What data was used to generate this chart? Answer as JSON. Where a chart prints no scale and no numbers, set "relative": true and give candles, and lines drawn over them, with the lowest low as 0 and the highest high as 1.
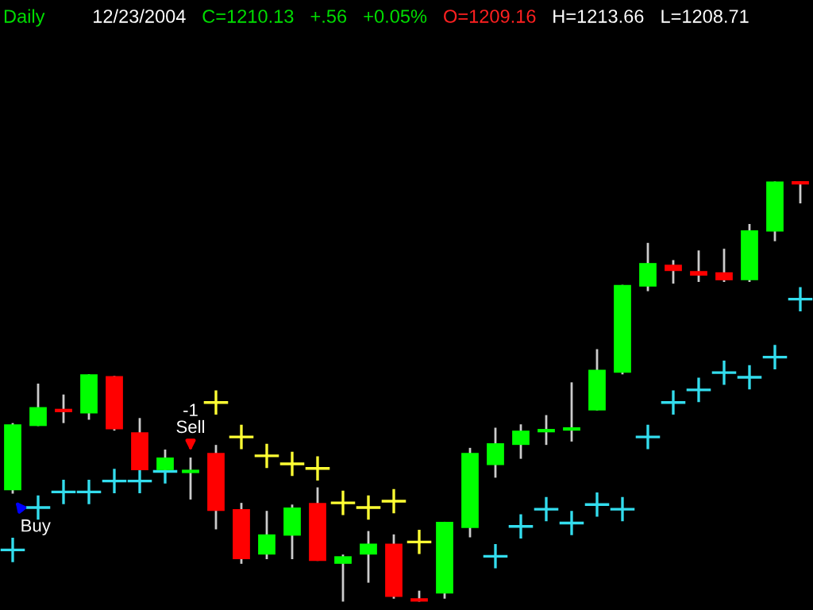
{
  "chart_data": {
    "type": "candlestick",
    "relative": true,
    "title": "Daily",
    "annotations": [
      "12/23/2004",
      "C=1210.13",
      "+.56",
      "+0.05%",
      "O=1209.16",
      "H=1213.66",
      "L=1208.71",
      "-1",
      "Sell",
      "Buy"
    ],
    "categories": [
      null,
      null,
      null,
      null,
      null,
      null,
      null,
      null,
      null,
      null,
      null,
      null,
      null,
      null,
      null,
      null,
      null,
      null,
      null,
      null,
      null,
      null,
      null,
      null,
      null,
      null,
      null,
      null,
      null,
      null,
      null,
      null
    ],
    "ohlc": [
      [
        0.265,
        0.425,
        0.257,
        0.422
      ],
      [
        0.418,
        0.519,
        0.418,
        0.463
      ],
      [
        0.459,
        0.493,
        0.425,
        0.451
      ],
      [
        0.448,
        0.541,
        0.433,
        0.541
      ],
      [
        0.537,
        0.537,
        0.407,
        0.41
      ],
      [
        0.403,
        0.437,
        0.313,
        0.313
      ],
      [
        0.313,
        0.362,
        0.313,
        0.343
      ],
      [
        0.306,
        0.343,
        0.243,
        0.313
      ],
      [
        0.354,
        0.373,
        0.172,
        0.216
      ],
      [
        0.22,
        0.235,
        0.09,
        0.101
      ],
      [
        0.112,
        0.216,
        0.101,
        0.16
      ],
      [
        0.157,
        0.231,
        0.101,
        0.224
      ],
      [
        0.235,
        0.272,
        0.097,
        0.097
      ],
      [
        0.09,
        0.112,
        0.0,
        0.108
      ],
      [
        0.112,
        0.168,
        0.045,
        0.138
      ],
      [
        0.138,
        0.16,
        0.007,
        0.011
      ],
      [
        0.004,
        0.026,
        0.0,
        0.0
      ],
      [
        0.019,
        0.19,
        0.007,
        0.19
      ],
      [
        0.175,
        0.366,
        0.153,
        0.354
      ],
      [
        0.325,
        0.414,
        0.295,
        0.377
      ],
      [
        0.373,
        0.422,
        0.34,
        0.407
      ],
      [
        0.403,
        0.444,
        0.373,
        0.41
      ],
      [
        0.407,
        0.522,
        0.381,
        0.41
      ],
      [
        0.455,
        0.601,
        0.455,
        0.552
      ],
      [
        0.545,
        0.754,
        0.541,
        0.754
      ],
      [
        0.75,
        0.854,
        0.739,
        0.806
      ],
      [
        0.802,
        0.813,
        0.757,
        0.787
      ],
      [
        0.787,
        0.836,
        0.761,
        0.776
      ],
      [
        0.784,
        0.84,
        0.761,
        0.765
      ],
      [
        0.765,
        0.899,
        0.761,
        0.884
      ],
      [
        0.881,
        1.0,
        0.858,
        1.0
      ],
      [
        1.0,
        1.0,
        0.948,
        0.993
      ]
    ],
    "series": [
      {
        "type": "scatter",
        "marker": "cross",
        "values": [
          0.123,
          0.224,
          0.261,
          0.261,
          0.287,
          0.287,
          0.31,
          null,
          0.474,
          0.392,
          0.347,
          0.328,
          0.317,
          0.235,
          0.224,
          0.239,
          0.142,
          null,
          null,
          0.108,
          0.179,
          0.22,
          0.187,
          0.231,
          0.22,
          0.392,
          0.474,
          0.504,
          0.545,
          0.534,
          0.582,
          0.72
        ],
        "colors": [
          "#33ddee",
          "#33ddee",
          "#33ddee",
          "#33ddee",
          "#33ddee",
          "#33ddee",
          "#33ddee",
          null,
          "#ffff33",
          "#ffff33",
          "#ffff33",
          "#ffff33",
          "#ffff33",
          "#ffff33",
          "#ffff33",
          "#ffff33",
          "#ffff33",
          null,
          null,
          "#33ddee",
          "#33ddee",
          "#33ddee",
          "#33ddee",
          "#33ddee",
          "#33ddee",
          "#33ddee",
          "#33ddee",
          "#33ddee",
          "#33ddee",
          "#33ddee",
          "#33ddee",
          "#33ddee"
        ]
      }
    ],
    "grid": false,
    "legend": false
  }
}
